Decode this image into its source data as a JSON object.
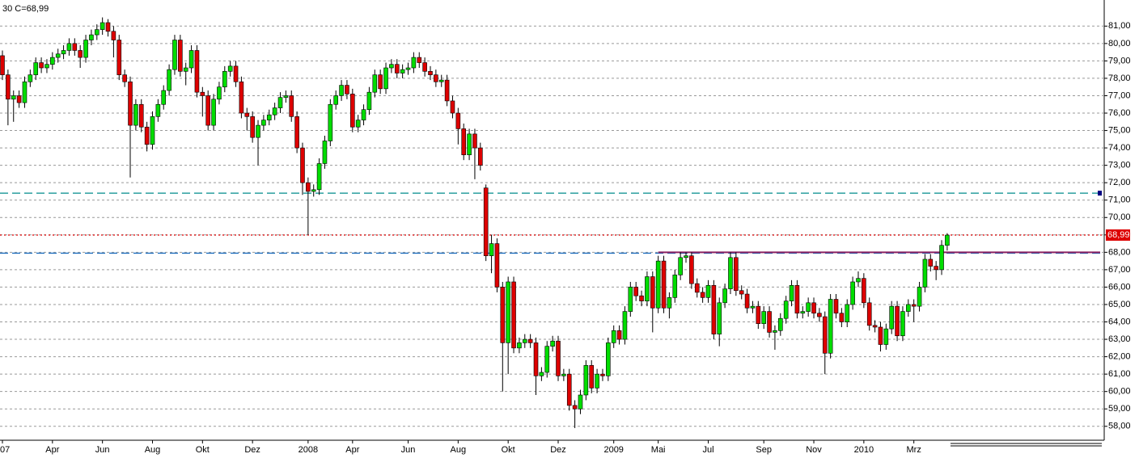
{
  "chart_data": {
    "type": "candlestick",
    "title": "30 C=68,99",
    "up_color": "#00dd00",
    "down_color": "#dd0000",
    "categories": [
      "07",
      null,
      null,
      null,
      null,
      null,
      null,
      null,
      null,
      "Apr",
      null,
      null,
      null,
      null,
      null,
      null,
      null,
      null,
      "Jun",
      null,
      null,
      null,
      null,
      null,
      null,
      null,
      null,
      "Aug",
      null,
      null,
      null,
      null,
      null,
      null,
      null,
      null,
      "Okt",
      null,
      null,
      null,
      null,
      null,
      null,
      null,
      null,
      "Dez",
      null,
      null,
      null,
      null,
      null,
      null,
      null,
      null,
      null,
      "2008",
      null,
      null,
      null,
      null,
      null,
      null,
      null,
      "Apr",
      null,
      null,
      null,
      null,
      null,
      null,
      null,
      null,
      null,
      "Jun",
      null,
      null,
      null,
      null,
      null,
      null,
      null,
      null,
      "Aug",
      null,
      null,
      null,
      null,
      null,
      null,
      null,
      null,
      "Okt",
      null,
      null,
      null,
      null,
      null,
      null,
      null,
      null,
      "Dez",
      null,
      null,
      null,
      null,
      null,
      null,
      null,
      null,
      null,
      "2009",
      null,
      null,
      null,
      null,
      null,
      null,
      null,
      "Mai",
      null,
      null,
      null,
      null,
      null,
      null,
      null,
      null,
      "Jul",
      null,
      null,
      null,
      null,
      null,
      null,
      null,
      null,
      null,
      "Sep",
      null,
      null,
      null,
      null,
      null,
      null,
      null,
      null,
      "Nov",
      null,
      null,
      null,
      null,
      null,
      null,
      null,
      null,
      "2010",
      null,
      null,
      null,
      null,
      null,
      null,
      null,
      null,
      "Mrz",
      null,
      null,
      null,
      null,
      null,
      null
    ],
    "open": [
      79.3,
      78.2,
      76.8,
      77.0,
      76.6,
      77.8,
      78.2,
      78.9,
      78.6,
      78.8,
      79.2,
      79.4,
      79.6,
      80.0,
      79.6,
      79.2,
      80.2,
      80.5,
      80.8,
      81.2,
      80.7,
      80.2,
      78.2,
      77.8,
      75.3,
      76.5,
      75.2,
      74.2,
      75.8,
      76.5,
      77.3,
      78.5,
      80.2,
      78.4,
      78.6,
      79.6,
      77.2,
      77.0,
      75.3,
      76.8,
      77.5,
      78.4,
      78.7,
      77.8,
      76.0,
      75.8,
      74.6,
      75.3,
      75.6,
      75.9,
      76.3,
      76.9,
      77.0,
      75.8,
      74.0,
      72.0,
      71.5,
      71.6,
      73.1,
      74.4,
      76.5,
      77.0,
      77.6,
      77.1,
      75.2,
      75.6,
      76.2,
      77.2,
      78.2,
      77.4,
      78.6,
      78.8,
      78.3,
      78.5,
      78.6,
      79.2,
      78.9,
      78.4,
      78.2,
      77.8,
      77.9,
      76.7,
      76.0,
      75.1,
      73.6,
      74.8,
      74.0,
      71.7,
      67.8,
      68.5,
      66.0,
      62.8,
      66.3,
      62.5,
      62.8,
      63.0,
      62.8,
      60.9,
      61.1,
      62.6,
      62.9,
      60.9,
      61.0,
      59.2,
      59.0,
      59.8,
      61.5,
      60.2,
      61.0,
      60.9,
      62.8,
      63.5,
      63.0,
      64.6,
      66.0,
      65.5,
      65.2,
      66.6,
      64.8,
      67.5,
      64.8,
      65.4,
      66.7,
      67.7,
      67.8,
      66.2,
      65.7,
      65.4,
      66.1,
      63.3,
      65.1,
      65.9,
      67.7,
      65.8,
      65.6,
      64.8,
      64.9,
      63.9,
      64.6,
      63.4,
      63.5,
      64.2,
      65.2,
      66.1,
      64.5,
      64.6,
      65.1,
      64.5,
      64.3,
      62.2,
      65.3,
      64.5,
      64.0,
      65.0,
      66.3,
      66.5,
      65.1,
      63.8,
      63.7,
      62.7,
      63.6,
      64.9,
      63.2,
      64.6,
      65.0,
      64.9,
      66.0,
      67.6,
      67.2,
      67.0,
      68.4
    ],
    "high": [
      79.6,
      78.5,
      77.3,
      77.3,
      78.1,
      78.5,
      79.2,
      79.2,
      79.1,
      79.5,
      79.7,
      79.9,
      80.3,
      80.3,
      79.9,
      80.5,
      80.8,
      81.1,
      81.5,
      81.4,
      81.0,
      80.5,
      78.5,
      78.1,
      76.8,
      76.8,
      75.5,
      76.1,
      76.8,
      77.6,
      78.8,
      80.5,
      80.5,
      78.9,
      79.9,
      79.9,
      77.5,
      77.3,
      77.1,
      77.8,
      78.7,
      79.0,
      79.0,
      78.1,
      76.3,
      76.1,
      75.6,
      75.9,
      76.2,
      76.6,
      77.2,
      77.3,
      77.3,
      76.1,
      74.3,
      72.3,
      71.9,
      73.4,
      74.7,
      76.8,
      77.3,
      77.9,
      77.9,
      77.4,
      75.9,
      76.5,
      77.5,
      78.5,
      78.5,
      78.9,
      79.1,
      79.1,
      78.8,
      78.9,
      79.5,
      79.5,
      79.2,
      78.7,
      78.5,
      78.2,
      78.2,
      77.0,
      76.3,
      75.4,
      75.1,
      75.1,
      74.3,
      71.9,
      69.0,
      68.8,
      66.3,
      66.6,
      66.6,
      63.1,
      63.3,
      63.3,
      63.1,
      61.4,
      62.9,
      63.2,
      63.2,
      61.3,
      61.3,
      59.5,
      60.1,
      61.8,
      61.8,
      61.3,
      61.3,
      63.1,
      63.8,
      63.8,
      64.9,
      66.3,
      66.3,
      65.8,
      66.9,
      66.9,
      67.8,
      67.8,
      65.7,
      67.0,
      68.0,
      68.0,
      68.0,
      66.5,
      66.0,
      66.4,
      66.4,
      65.4,
      66.2,
      68.0,
      68.0,
      66.1,
      65.9,
      65.2,
      65.2,
      64.9,
      64.9,
      63.8,
      64.5,
      65.5,
      66.4,
      66.4,
      64.9,
      65.4,
      65.4,
      64.8,
      64.6,
      65.6,
      65.6,
      64.8,
      65.3,
      66.6,
      66.9,
      66.8,
      65.4,
      64.1,
      64.0,
      63.9,
      65.2,
      65.2,
      64.9,
      65.3,
      65.3,
      66.3,
      67.9,
      67.9,
      67.5,
      68.7,
      69.1
    ],
    "low": [
      77.9,
      75.3,
      75.5,
      76.3,
      76.3,
      77.5,
      77.9,
      78.3,
      78.3,
      78.5,
      78.9,
      79.1,
      79.3,
      79.3,
      78.6,
      78.9,
      79.9,
      80.2,
      80.5,
      80.4,
      79.2,
      77.9,
      77.5,
      72.3,
      75.0,
      74.9,
      73.8,
      73.9,
      75.5,
      76.2,
      77.0,
      78.2,
      78.1,
      77.6,
      78.3,
      76.9,
      75.8,
      75.0,
      75.0,
      76.5,
      77.2,
      78.1,
      77.5,
      75.7,
      75.0,
      74.3,
      73.0,
      75.0,
      75.3,
      75.6,
      76.0,
      76.6,
      75.5,
      73.7,
      71.3,
      69.0,
      71.2,
      71.3,
      72.8,
      74.1,
      76.2,
      76.7,
      76.8,
      74.9,
      74.9,
      75.3,
      75.9,
      76.9,
      77.1,
      77.1,
      78.3,
      78.0,
      78.0,
      78.2,
      78.3,
      78.6,
      78.1,
      77.9,
      77.5,
      77.5,
      76.4,
      75.7,
      74.2,
      73.3,
      73.3,
      72.2,
      72.7,
      67.5,
      66.8,
      65.7,
      60.0,
      61.0,
      62.2,
      62.2,
      62.5,
      62.5,
      59.8,
      60.6,
      60.8,
      62.3,
      60.6,
      60.6,
      58.9,
      57.9,
      58.7,
      59.5,
      59.9,
      59.9,
      60.6,
      60.6,
      62.5,
      62.7,
      62.7,
      64.3,
      65.2,
      64.9,
      64.9,
      63.4,
      64.5,
      64.5,
      64.2,
      65.1,
      66.4,
      67.4,
      65.9,
      65.4,
      65.1,
      65.1,
      63.0,
      62.6,
      64.8,
      65.6,
      65.5,
      65.3,
      64.5,
      64.5,
      63.6,
      63.6,
      63.1,
      62.4,
      63.2,
      63.9,
      64.9,
      64.2,
      64.2,
      64.3,
      64.2,
      64.0,
      61.0,
      61.9,
      64.2,
      63.7,
      63.7,
      64.7,
      66.0,
      64.8,
      63.5,
      63.4,
      62.3,
      62.4,
      63.3,
      62.9,
      62.9,
      64.3,
      64.0,
      64.6,
      65.7,
      66.9,
      66.4,
      66.7,
      68.1
    ],
    "close": [
      78.2,
      76.8,
      77.0,
      76.6,
      77.8,
      78.2,
      78.9,
      78.6,
      78.8,
      79.2,
      79.4,
      79.6,
      80.0,
      79.6,
      79.2,
      80.2,
      80.5,
      80.8,
      81.2,
      80.7,
      80.2,
      78.2,
      77.8,
      75.3,
      76.5,
      75.2,
      74.2,
      75.8,
      76.5,
      77.3,
      78.5,
      80.2,
      78.4,
      78.6,
      79.6,
      77.2,
      77.0,
      75.3,
      76.8,
      77.5,
      78.4,
      78.7,
      77.8,
      76.0,
      75.8,
      74.6,
      75.3,
      75.6,
      75.9,
      76.3,
      76.9,
      77.0,
      75.8,
      74.0,
      72.0,
      71.5,
      71.6,
      73.1,
      74.4,
      76.5,
      77.0,
      77.6,
      77.1,
      75.2,
      75.6,
      76.2,
      77.2,
      78.2,
      77.4,
      78.6,
      78.8,
      78.3,
      78.5,
      78.6,
      79.2,
      78.9,
      78.4,
      78.2,
      77.8,
      77.9,
      76.7,
      76.0,
      75.1,
      73.6,
      74.8,
      74.0,
      73.0,
      67.8,
      68.5,
      66.0,
      62.8,
      66.3,
      62.5,
      62.8,
      63.0,
      62.8,
      60.9,
      61.1,
      62.6,
      62.9,
      60.9,
      61.0,
      59.2,
      59.0,
      59.8,
      61.5,
      60.2,
      61.0,
      60.9,
      62.8,
      63.5,
      63.0,
      64.6,
      66.0,
      65.5,
      65.2,
      66.6,
      64.8,
      67.5,
      64.8,
      65.4,
      66.7,
      67.7,
      67.8,
      66.2,
      65.7,
      65.4,
      66.1,
      63.3,
      65.1,
      65.9,
      67.7,
      65.8,
      65.6,
      64.8,
      64.9,
      63.9,
      64.6,
      63.4,
      63.5,
      64.2,
      65.2,
      66.1,
      64.5,
      64.6,
      65.1,
      64.5,
      64.3,
      62.2,
      65.3,
      64.5,
      64.0,
      65.0,
      66.3,
      66.5,
      65.1,
      63.8,
      63.7,
      62.7,
      63.6,
      64.9,
      63.2,
      64.6,
      65.0,
      64.9,
      66.0,
      67.6,
      67.2,
      67.0,
      68.4,
      68.99
    ],
    "ylim": [
      57.2,
      82.5
    ],
    "yticks": [
      {
        "value": 58,
        "label": "58,00"
      },
      {
        "value": 59,
        "label": "59,00"
      },
      {
        "value": 60,
        "label": "60,00"
      },
      {
        "value": 61,
        "label": "61,00"
      },
      {
        "value": 62,
        "label": "62,00"
      },
      {
        "value": 63,
        "label": "63,00"
      },
      {
        "value": 64,
        "label": "64,00"
      },
      {
        "value": 65,
        "label": "65,00"
      },
      {
        "value": 66,
        "label": "66,00"
      },
      {
        "value": 67,
        "label": "67,00"
      },
      {
        "value": 68,
        "label": "68,00"
      },
      {
        "value": 69,
        "label": "69,00"
      },
      {
        "value": 70,
        "label": "70,00"
      },
      {
        "value": 71,
        "label": "71,00"
      },
      {
        "value": 72,
        "label": "72,00"
      },
      {
        "value": 73,
        "label": "73,00"
      },
      {
        "value": 74,
        "label": "74,00"
      },
      {
        "value": 75,
        "label": "75,00"
      },
      {
        "value": 76,
        "label": "76,00"
      },
      {
        "value": 77,
        "label": "77,00"
      },
      {
        "value": 78,
        "label": "78,00"
      },
      {
        "value": 79,
        "label": "79,00"
      },
      {
        "value": 80,
        "label": "80,00"
      },
      {
        "value": 81,
        "label": "81,00"
      }
    ],
    "grid": true,
    "reference_lines": [
      {
        "value": 71.4,
        "color": "#008b8b",
        "style": "dashed"
      },
      {
        "value": 67.95,
        "color": "#1f6fbf",
        "style": "dashed"
      }
    ],
    "trend_line": {
      "value": 68.0,
      "start_index": 118,
      "color": "#8b2060"
    },
    "price_line": {
      "value": 68.99,
      "label": "68,99",
      "color": "#dd0000"
    }
  }
}
